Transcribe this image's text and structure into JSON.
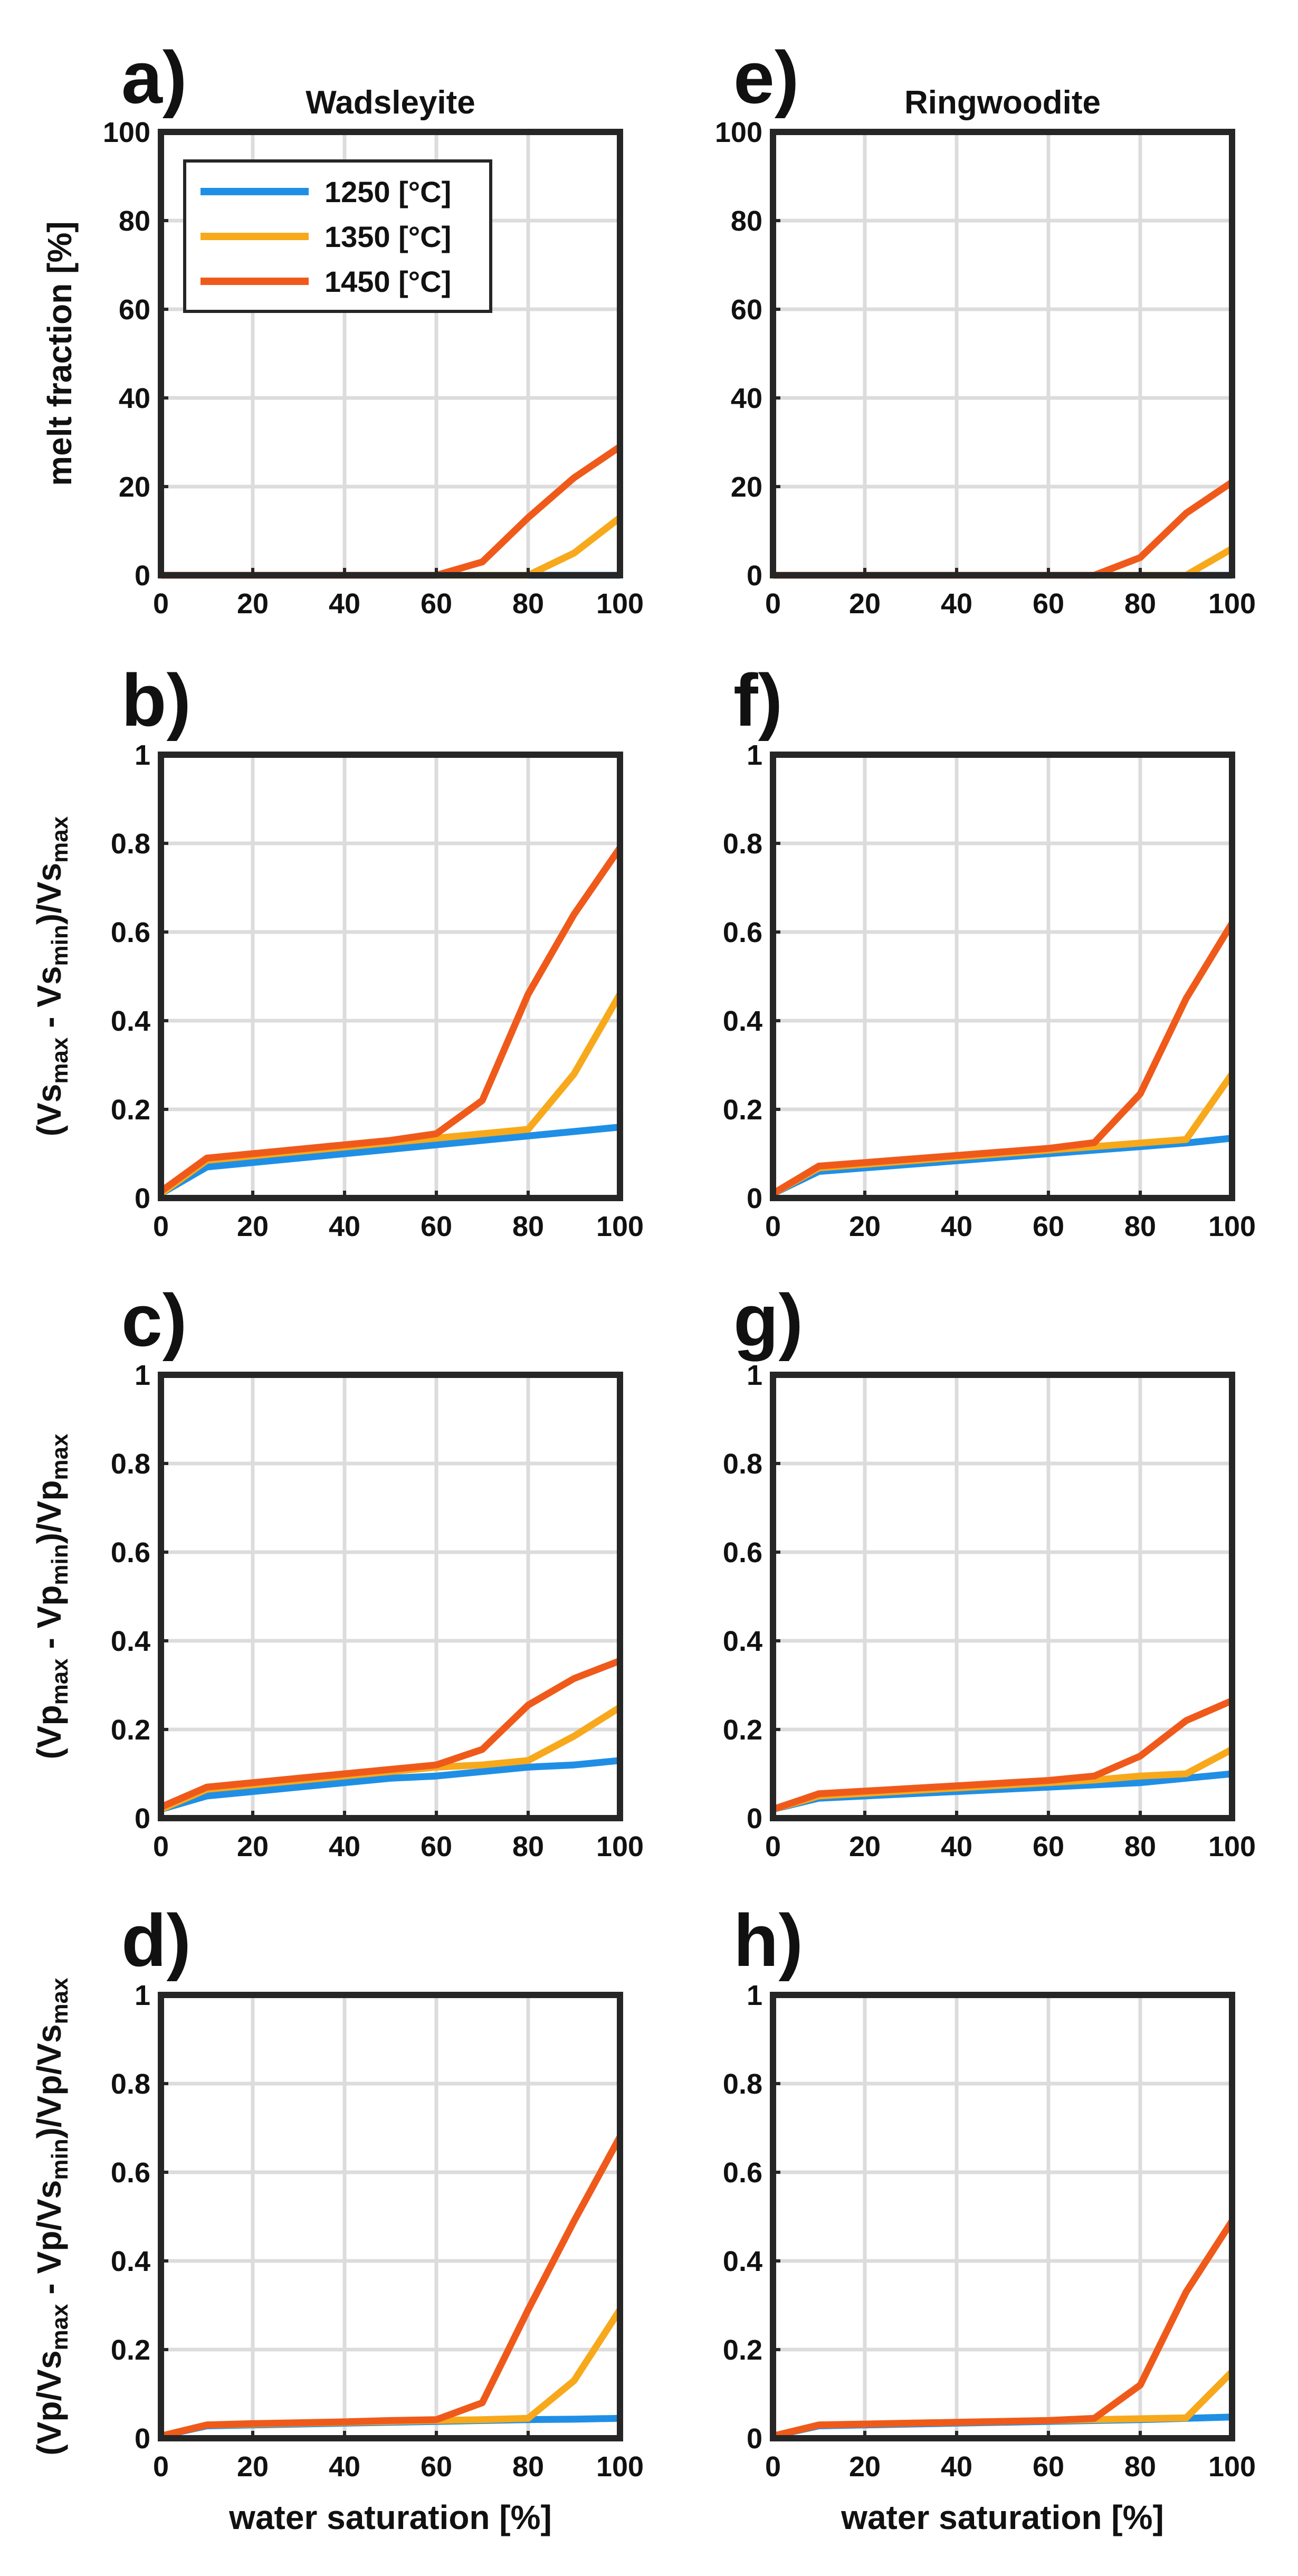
{
  "figure": {
    "columns": [
      {
        "title": "Wadsleyite"
      },
      {
        "title": "Ringwoodite"
      }
    ],
    "xlabel": "water saturation [%]",
    "legend": {
      "entries": [
        {
          "label": "1250 [°C]",
          "color": "#1f8fe6"
        },
        {
          "label": "1350 [°C]",
          "color": "#f7a91b"
        },
        {
          "label": "1450 [°C]",
          "color": "#ef5a1b"
        }
      ]
    },
    "ylabels": {
      "melt": "melt fraction [%]",
      "vs": {
        "p1": "(Vs",
        "s1": "max",
        "p2": " - Vs",
        "s2": "min",
        "p3": ")/Vs",
        "s3": "max"
      },
      "vp": {
        "p1": "(Vp",
        "s1": "max",
        "p2": " - Vp",
        "s2": "min",
        "p3": ")/Vp",
        "s3": "max"
      },
      "vpvs": {
        "p1": "(Vp/Vs",
        "s1": "max",
        "p2": " - Vp/Vs",
        "s2": "min",
        "p3": ")/Vp/Vs",
        "s3": "max"
      }
    }
  },
  "chart_data": [
    {
      "id": "a",
      "label": "a)",
      "type": "line",
      "col": 0,
      "row": 0,
      "ylabel_key": "melt",
      "x": [
        0,
        10,
        20,
        30,
        40,
        50,
        60,
        70,
        80,
        90,
        100
      ],
      "xlim": [
        0,
        100
      ],
      "ylim": [
        0,
        100
      ],
      "xticks": [
        0,
        20,
        40,
        60,
        80,
        100
      ],
      "yticks": [
        0,
        20,
        40,
        60,
        80,
        100
      ],
      "series": [
        {
          "name": "1250 [°C]",
          "values": [
            0,
            0,
            0,
            0,
            0,
            0,
            0,
            0,
            0,
            0,
            0
          ]
        },
        {
          "name": "1350 [°C]",
          "values": [
            0,
            0,
            0,
            0,
            0,
            0,
            0,
            0,
            0,
            5,
            13
          ]
        },
        {
          "name": "1450 [°C]",
          "values": [
            0,
            0,
            0,
            0,
            0,
            0,
            0,
            3,
            13,
            22,
            29
          ]
        }
      ],
      "legend": "top-left"
    },
    {
      "id": "b",
      "label": "b)",
      "type": "line",
      "col": 0,
      "row": 1,
      "ylabel_key": "vs",
      "x": [
        0,
        10,
        20,
        30,
        40,
        50,
        60,
        70,
        80,
        90,
        100
      ],
      "xlim": [
        0,
        100
      ],
      "ylim": [
        0,
        1
      ],
      "xticks": [
        0,
        20,
        40,
        60,
        80,
        100
      ],
      "yticks": [
        0,
        0.2,
        0.4,
        0.6,
        0.8,
        1
      ],
      "series": [
        {
          "name": "1250 [°C]",
          "values": [
            0.01,
            0.07,
            0.08,
            0.09,
            0.1,
            0.11,
            0.12,
            0.13,
            0.14,
            0.15,
            0.16
          ]
        },
        {
          "name": "1350 [°C]",
          "values": [
            0.01,
            0.085,
            0.095,
            0.105,
            0.115,
            0.125,
            0.135,
            0.145,
            0.155,
            0.28,
            0.46
          ]
        },
        {
          "name": "1450 [°C]",
          "values": [
            0.015,
            0.09,
            0.1,
            0.11,
            0.12,
            0.13,
            0.145,
            0.22,
            0.46,
            0.64,
            0.79
          ]
        }
      ]
    },
    {
      "id": "c",
      "label": "c)",
      "type": "line",
      "col": 0,
      "row": 2,
      "ylabel_key": "vp",
      "x": [
        0,
        10,
        20,
        30,
        40,
        50,
        60,
        70,
        80,
        90,
        100
      ],
      "xlim": [
        0,
        100
      ],
      "ylim": [
        0,
        1
      ],
      "xticks": [
        0,
        20,
        40,
        60,
        80,
        100
      ],
      "yticks": [
        0,
        0.2,
        0.4,
        0.6,
        0.8,
        1
      ],
      "series": [
        {
          "name": "1250 [°C]",
          "values": [
            0.02,
            0.05,
            0.06,
            0.07,
            0.08,
            0.09,
            0.095,
            0.105,
            0.115,
            0.12,
            0.13
          ]
        },
        {
          "name": "1350 [°C]",
          "values": [
            0.02,
            0.065,
            0.075,
            0.085,
            0.095,
            0.105,
            0.115,
            0.12,
            0.13,
            0.185,
            0.25
          ]
        },
        {
          "name": "1450 [°C]",
          "values": [
            0.025,
            0.07,
            0.08,
            0.09,
            0.1,
            0.11,
            0.12,
            0.155,
            0.255,
            0.315,
            0.355
          ]
        }
      ]
    },
    {
      "id": "d",
      "label": "d)",
      "type": "line",
      "col": 0,
      "row": 3,
      "ylabel_key": "vpvs",
      "x": [
        0,
        10,
        20,
        30,
        40,
        50,
        60,
        70,
        80,
        90,
        100
      ],
      "xlim": [
        0,
        100
      ],
      "ylim": [
        0,
        1
      ],
      "xticks": [
        0,
        20,
        40,
        60,
        80,
        100
      ],
      "yticks": [
        0,
        0.2,
        0.4,
        0.6,
        0.8,
        1
      ],
      "series": [
        {
          "name": "1250 [°C]",
          "values": [
            0.005,
            0.028,
            0.03,
            0.032,
            0.034,
            0.036,
            0.038,
            0.04,
            0.042,
            0.043,
            0.045
          ]
        },
        {
          "name": "1350 [°C]",
          "values": [
            0.005,
            0.03,
            0.032,
            0.034,
            0.036,
            0.038,
            0.04,
            0.042,
            0.045,
            0.13,
            0.29
          ]
        },
        {
          "name": "1450 [°C]",
          "values": [
            0.005,
            0.03,
            0.033,
            0.035,
            0.037,
            0.04,
            0.042,
            0.08,
            0.29,
            0.49,
            0.68
          ]
        }
      ]
    },
    {
      "id": "e",
      "label": "e)",
      "type": "line",
      "col": 1,
      "row": 0,
      "ylabel_key": "",
      "x": [
        0,
        10,
        20,
        30,
        40,
        50,
        60,
        70,
        80,
        90,
        100
      ],
      "xlim": [
        0,
        100
      ],
      "ylim": [
        0,
        100
      ],
      "xticks": [
        0,
        20,
        40,
        60,
        80,
        100
      ],
      "yticks": [
        0,
        20,
        40,
        60,
        80,
        100
      ],
      "series": [
        {
          "name": "1250 [°C]",
          "values": [
            0,
            0,
            0,
            0,
            0,
            0,
            0,
            0,
            0,
            0,
            0
          ]
        },
        {
          "name": "1350 [°C]",
          "values": [
            0,
            0,
            0,
            0,
            0,
            0,
            0,
            0,
            0,
            0,
            6
          ]
        },
        {
          "name": "1450 [°C]",
          "values": [
            0,
            0,
            0,
            0,
            0,
            0,
            0,
            0,
            4,
            14,
            21
          ]
        }
      ]
    },
    {
      "id": "f",
      "label": "f)",
      "type": "line",
      "col": 1,
      "row": 1,
      "ylabel_key": "",
      "x": [
        0,
        10,
        20,
        30,
        40,
        50,
        60,
        70,
        80,
        90,
        100
      ],
      "xlim": [
        0,
        100
      ],
      "ylim": [
        0,
        1
      ],
      "xticks": [
        0,
        20,
        40,
        60,
        80,
        100
      ],
      "yticks": [
        0,
        0.2,
        0.4,
        0.6,
        0.8,
        1
      ],
      "series": [
        {
          "name": "1250 [°C]",
          "values": [
            0.01,
            0.06,
            0.068,
            0.076,
            0.084,
            0.092,
            0.1,
            0.108,
            0.116,
            0.124,
            0.135
          ]
        },
        {
          "name": "1350 [°C]",
          "values": [
            0.01,
            0.068,
            0.076,
            0.084,
            0.092,
            0.1,
            0.108,
            0.116,
            0.124,
            0.132,
            0.28
          ]
        },
        {
          "name": "1450 [°C]",
          "values": [
            0.01,
            0.072,
            0.08,
            0.088,
            0.096,
            0.104,
            0.112,
            0.125,
            0.235,
            0.45,
            0.62
          ]
        }
      ]
    },
    {
      "id": "g",
      "label": "g)",
      "type": "line",
      "col": 1,
      "row": 2,
      "ylabel_key": "",
      "x": [
        0,
        10,
        20,
        30,
        40,
        50,
        60,
        70,
        80,
        90,
        100
      ],
      "xlim": [
        0,
        100
      ],
      "ylim": [
        0,
        1
      ],
      "xticks": [
        0,
        20,
        40,
        60,
        80,
        100
      ],
      "yticks": [
        0,
        0.2,
        0.4,
        0.6,
        0.8,
        1
      ],
      "series": [
        {
          "name": "1250 [°C]",
          "values": [
            0.02,
            0.045,
            0.05,
            0.055,
            0.06,
            0.065,
            0.07,
            0.075,
            0.08,
            0.09,
            0.1
          ]
        },
        {
          "name": "1350 [°C]",
          "values": [
            0.02,
            0.05,
            0.056,
            0.062,
            0.068,
            0.074,
            0.08,
            0.086,
            0.095,
            0.1,
            0.155
          ]
        },
        {
          "name": "1450 [°C]",
          "values": [
            0.02,
            0.055,
            0.061,
            0.067,
            0.073,
            0.079,
            0.085,
            0.095,
            0.14,
            0.22,
            0.265
          ]
        }
      ]
    },
    {
      "id": "h",
      "label": "h)",
      "type": "line",
      "col": 1,
      "row": 3,
      "ylabel_key": "",
      "x": [
        0,
        10,
        20,
        30,
        40,
        50,
        60,
        70,
        80,
        90,
        100
      ],
      "xlim": [
        0,
        100
      ],
      "ylim": [
        0,
        1
      ],
      "xticks": [
        0,
        20,
        40,
        60,
        80,
        100
      ],
      "yticks": [
        0,
        0.2,
        0.4,
        0.6,
        0.8,
        1
      ],
      "series": [
        {
          "name": "1250 [°C]",
          "values": [
            0.005,
            0.028,
            0.03,
            0.032,
            0.034,
            0.036,
            0.038,
            0.04,
            0.042,
            0.045,
            0.048
          ]
        },
        {
          "name": "1350 [°C]",
          "values": [
            0.005,
            0.03,
            0.032,
            0.034,
            0.036,
            0.038,
            0.04,
            0.042,
            0.044,
            0.046,
            0.15
          ]
        },
        {
          "name": "1450 [°C]",
          "values": [
            0.005,
            0.03,
            0.032,
            0.034,
            0.036,
            0.038,
            0.04,
            0.045,
            0.12,
            0.33,
            0.49
          ]
        }
      ]
    }
  ]
}
